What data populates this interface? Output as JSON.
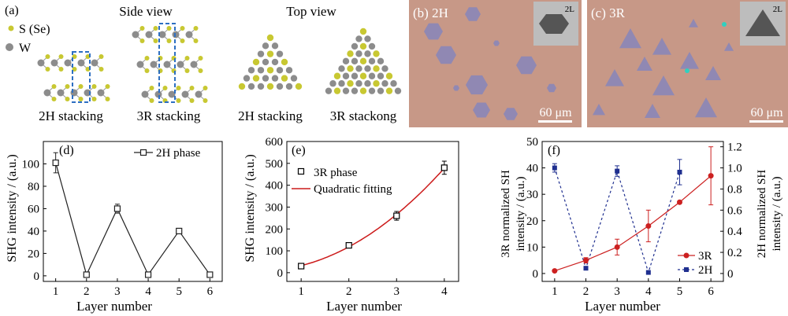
{
  "panels": {
    "a": {
      "letter": "(a)",
      "side_view_title": "Side view",
      "top_view_title": "Top view",
      "legend_s": "S (Se)",
      "legend_w": "W",
      "labels": [
        "2H stacking",
        "3R stacking",
        "2H stacking",
        "3R stackong"
      ],
      "atom_colors": {
        "s": "#c8c832",
        "w": "#8c8c8c"
      }
    },
    "b": {
      "letter": "(b) 2H",
      "inset": "2L",
      "scale": "60 μm"
    },
    "c": {
      "letter": "(c) 3R",
      "inset": "2L",
      "scale": "60 μm"
    }
  },
  "chart_data": [
    {
      "panel": "(d)",
      "type": "line",
      "x": [
        1,
        2,
        3,
        4,
        5,
        6
      ],
      "series": [
        {
          "name": "2H phase",
          "values": [
            101,
            1,
            60,
            1,
            40,
            1
          ],
          "errors": [
            9,
            0,
            4,
            0,
            2,
            0
          ]
        }
      ],
      "xlabel": "Layer number",
      "ylabel": "SHG intensity / (a.u.)",
      "xlim": [
        0.6,
        6.4
      ],
      "ylim": [
        -5,
        120
      ],
      "xticks": [
        "1",
        "2",
        "3",
        "4",
        "5",
        "6"
      ],
      "yticks": [
        "0",
        "20",
        "40",
        "60",
        "80",
        "100"
      ],
      "legend_position": "top-right",
      "color": "#222222"
    },
    {
      "panel": "(e)",
      "type": "scatter",
      "x": [
        1,
        2,
        3,
        4
      ],
      "series": [
        {
          "name": "3R phase",
          "values": [
            30,
            125,
            260,
            480
          ],
          "errors": [
            6,
            10,
            20,
            30
          ]
        },
        {
          "name": "Quadratic fitting",
          "values": [
            30,
            125,
            260,
            480
          ]
        }
      ],
      "xlabel": "Layer number",
      "ylabel": "SHG intensity / (a.u.)",
      "xlim": [
        0.7,
        4.3
      ],
      "ylim": [
        -40,
        600
      ],
      "xticks": [
        "1",
        "2",
        "3",
        "4"
      ],
      "yticks": [
        "0",
        "100",
        "200",
        "300",
        "400",
        "500",
        "600"
      ],
      "legend_position": "top-left",
      "fit_color": "#cc1a1a"
    },
    {
      "panel": "(f)",
      "type": "line",
      "x": [
        1,
        2,
        3,
        4,
        5,
        6
      ],
      "series": [
        {
          "name": "3R",
          "x": [
            1,
            2,
            3,
            4,
            5,
            6
          ],
          "values": [
            1,
            5,
            10,
            18,
            27,
            37
          ],
          "errors": [
            0,
            1,
            3,
            6,
            0,
            11
          ],
          "axis": "left",
          "color": "#cc2020"
        },
        {
          "name": "2H",
          "x": [
            1,
            2,
            3,
            4,
            5
          ],
          "values": [
            1.0,
            0.05,
            0.97,
            0.01,
            0.96
          ],
          "errors": [
            0.04,
            0.01,
            0.05,
            0.0,
            0.12
          ],
          "axis": "right",
          "color": "#1f2f8f"
        }
      ],
      "xlabel": "Layer number",
      "ylabel": "3R normalized SH intensity / (a.u.)",
      "ylabel_lines": [
        "3R normalized SH",
        "intensity / (a.u.)"
      ],
      "y2label_lines": [
        "2H normalized SH",
        "intensity / (a.u.)"
      ],
      "xlim": [
        0.6,
        6.4
      ],
      "ylim": [
        -3,
        50
      ],
      "y2lim": [
        -0.075,
        1.25
      ],
      "xticks": [
        "1",
        "2",
        "3",
        "4",
        "5",
        "6"
      ],
      "yticks": [
        "0",
        "10",
        "20",
        "30",
        "40",
        "50"
      ],
      "y2ticks": [
        "0",
        "0.2",
        "0.4",
        "0.6",
        "0.8",
        "1.0",
        "1.2"
      ],
      "legend_position": "bottom-right"
    }
  ]
}
